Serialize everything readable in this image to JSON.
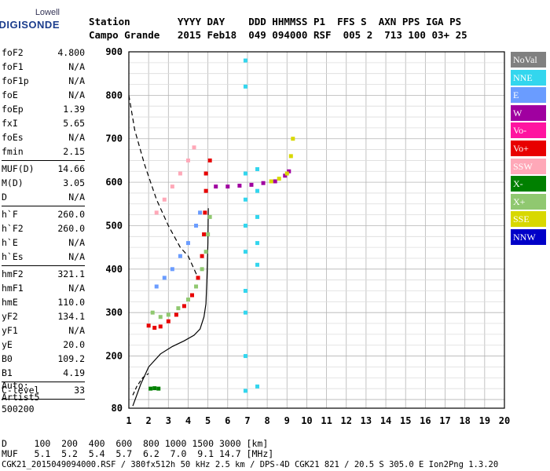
{
  "logo": {
    "brand": "Lowell",
    "name": "DIGISONDE"
  },
  "header": {
    "line1": "Station        YYYY DAY    DDD HHMMSS P1  FFS S  AXN PPS IGA PS",
    "line2": "Campo Grande   2015 Feb18  049 094000 RSF  005 2  713 100 03+ 25"
  },
  "params": [
    {
      "k": "foF2",
      "v": "4.800"
    },
    {
      "k": "foF1",
      "v": "N/A"
    },
    {
      "k": "foF1p",
      "v": "N/A"
    },
    {
      "k": "foE",
      "v": "N/A"
    },
    {
      "k": "foEp",
      "v": "1.39"
    },
    {
      "k": "fxI",
      "v": "5.65"
    },
    {
      "k": "foEs",
      "v": "N/A"
    },
    {
      "k": "fmin",
      "v": "2.15"
    },
    {
      "sep": true
    },
    {
      "k": "MUF(D)",
      "v": "14.66"
    },
    {
      "k": "M(D)",
      "v": "3.05"
    },
    {
      "k": "D",
      "v": "N/A"
    },
    {
      "sep": true
    },
    {
      "k": "h`F",
      "v": "260.0"
    },
    {
      "k": "h`F2",
      "v": "260.0"
    },
    {
      "k": "h`E",
      "v": "N/A"
    },
    {
      "k": "h`Es",
      "v": "N/A"
    },
    {
      "sep": true
    },
    {
      "k": "hmF2",
      "v": "321.1"
    },
    {
      "k": "hmF1",
      "v": "N/A"
    },
    {
      "k": "hmE",
      "v": "110.0"
    },
    {
      "k": "yF2",
      "v": "134.1"
    },
    {
      "k": "yF1",
      "v": "N/A"
    },
    {
      "k": "yE",
      "v": "20.0"
    },
    {
      "k": "B0",
      "v": "109.2"
    },
    {
      "k": "B1",
      "v": "4.19"
    },
    {
      "sep": true
    },
    {
      "k": "C-level",
      "v": "33"
    },
    {
      "sep": true
    }
  ],
  "auto": {
    "l1": "Auto:",
    "l2": "Artist5",
    "l3": "500200"
  },
  "legend": [
    {
      "label": "NoVal",
      "color": "#808080"
    },
    {
      "label": "NNE",
      "color": "#33d6ee"
    },
    {
      "label": "E",
      "color": "#6a9cff"
    },
    {
      "label": "W",
      "color": "#a000a0"
    },
    {
      "label": "Vo-",
      "color": "#ff14a0"
    },
    {
      "label": "Vo+",
      "color": "#e80000"
    },
    {
      "label": "SSW",
      "color": "#ffa8b8"
    },
    {
      "label": "X-",
      "color": "#008000"
    },
    {
      "label": "X+",
      "color": "#90c870"
    },
    {
      "label": "SSE",
      "color": "#d8d800"
    },
    {
      "label": "NNW",
      "color": "#0000c8"
    }
  ],
  "footer": {
    "d_line": "D     100  200  400  600  800 1000 1500 3000 [km]",
    "muf_line": "MUF   5.1  5.2  5.4  5.7  6.2  7.0  9.1 14.7 [MHz]",
    "file_line": "CGK21_2015049094000.RSF / 380fx512h 50 kHz 2.5 km / DPS-4D CGK21 821 / 20.5 S 305.0 E Ion2Png 1.3.20"
  },
  "chart_data": {
    "type": "scatter",
    "xlim": [
      1,
      20
    ],
    "ylim": [
      80,
      900
    ],
    "x_ticks": [
      "1",
      "2",
      "3",
      "4",
      "5",
      "6",
      "7",
      "8",
      "9",
      "10",
      "11",
      "12",
      "13",
      "14",
      "15",
      "16",
      "17",
      "18",
      "19",
      "20"
    ],
    "y_ticks": [
      "80",
      "200",
      "300",
      "400",
      "500",
      "600",
      "700",
      "800",
      "900"
    ],
    "grid": true,
    "series": [
      {
        "name": "Vo+",
        "color": "#e80000",
        "points": [
          [
            2.0,
            270
          ],
          [
            2.3,
            265
          ],
          [
            2.6,
            268
          ],
          [
            3.0,
            280
          ],
          [
            3.4,
            295
          ],
          [
            3.8,
            315
          ],
          [
            4.2,
            340
          ],
          [
            4.5,
            380
          ],
          [
            4.7,
            430
          ],
          [
            4.8,
            480
          ],
          [
            4.85,
            530
          ],
          [
            4.9,
            580
          ],
          [
            4.9,
            620
          ],
          [
            5.1,
            650
          ]
        ]
      },
      {
        "name": "X+",
        "color": "#90c870",
        "points": [
          [
            2.2,
            300
          ],
          [
            2.6,
            290
          ],
          [
            3.0,
            295
          ],
          [
            3.5,
            310
          ],
          [
            4.0,
            330
          ],
          [
            4.4,
            360
          ],
          [
            4.7,
            400
          ],
          [
            4.9,
            440
          ],
          [
            5.0,
            480
          ],
          [
            5.1,
            520
          ]
        ]
      },
      {
        "name": "E",
        "color": "#6a9cff",
        "points": [
          [
            2.4,
            360
          ],
          [
            2.8,
            380
          ],
          [
            3.2,
            400
          ],
          [
            3.6,
            430
          ],
          [
            4.0,
            460
          ],
          [
            4.4,
            500
          ],
          [
            4.6,
            530
          ]
        ]
      },
      {
        "name": "NNE",
        "color": "#33d6ee",
        "points": [
          [
            6.9,
            880
          ],
          [
            6.9,
            820
          ],
          [
            6.9,
            620
          ],
          [
            6.9,
            560
          ],
          [
            6.9,
            500
          ],
          [
            6.9,
            440
          ],
          [
            6.9,
            350
          ],
          [
            6.9,
            300
          ],
          [
            6.9,
            200
          ],
          [
            6.9,
            120
          ],
          [
            7.5,
            630
          ],
          [
            7.5,
            580
          ],
          [
            7.5,
            520
          ],
          [
            7.5,
            460
          ],
          [
            7.5,
            410
          ],
          [
            7.5,
            130
          ]
        ]
      },
      {
        "name": "W",
        "color": "#a000a0",
        "points": [
          [
            5.4,
            590
          ],
          [
            6.0,
            590
          ],
          [
            6.6,
            592
          ],
          [
            7.2,
            594
          ],
          [
            7.8,
            598
          ],
          [
            8.4,
            602
          ],
          [
            8.9,
            615
          ],
          [
            9.1,
            625
          ]
        ]
      },
      {
        "name": "SSE",
        "color": "#d8d800",
        "points": [
          [
            8.2,
            602
          ],
          [
            8.6,
            608
          ],
          [
            9.0,
            620
          ],
          [
            9.2,
            660
          ],
          [
            9.3,
            700
          ]
        ]
      },
      {
        "name": "SSW",
        "color": "#ffa8b8",
        "points": [
          [
            2.4,
            530
          ],
          [
            2.8,
            560
          ],
          [
            3.2,
            590
          ],
          [
            3.6,
            620
          ],
          [
            4.0,
            650
          ],
          [
            4.3,
            680
          ]
        ]
      },
      {
        "name": "X-",
        "color": "#008000",
        "points": [
          [
            2.1,
            125
          ],
          [
            2.3,
            126
          ],
          [
            2.5,
            125
          ]
        ]
      }
    ],
    "profile_solid": [
      [
        1.2,
        85
      ],
      [
        1.6,
        135
      ],
      [
        2.0,
        175
      ],
      [
        2.6,
        205
      ],
      [
        3.2,
        222
      ],
      [
        3.8,
        235
      ],
      [
        4.3,
        248
      ],
      [
        4.6,
        262
      ],
      [
        4.8,
        290
      ],
      [
        4.9,
        320
      ],
      [
        4.95,
        380
      ],
      [
        5.0,
        460
      ],
      [
        5.02,
        540
      ]
    ],
    "profile_dashed": [
      [
        1.0,
        800
      ],
      [
        1.3,
        720
      ],
      [
        1.8,
        640
      ],
      [
        2.4,
        560
      ],
      [
        3.0,
        500
      ],
      [
        3.6,
        450
      ],
      [
        4.0,
        430
      ],
      [
        4.3,
        400
      ],
      [
        4.5,
        380
      ]
    ],
    "profile_low_dashed": [
      [
        1.2,
        110
      ],
      [
        1.4,
        130
      ],
      [
        1.7,
        150
      ],
      [
        2.0,
        160
      ]
    ]
  }
}
